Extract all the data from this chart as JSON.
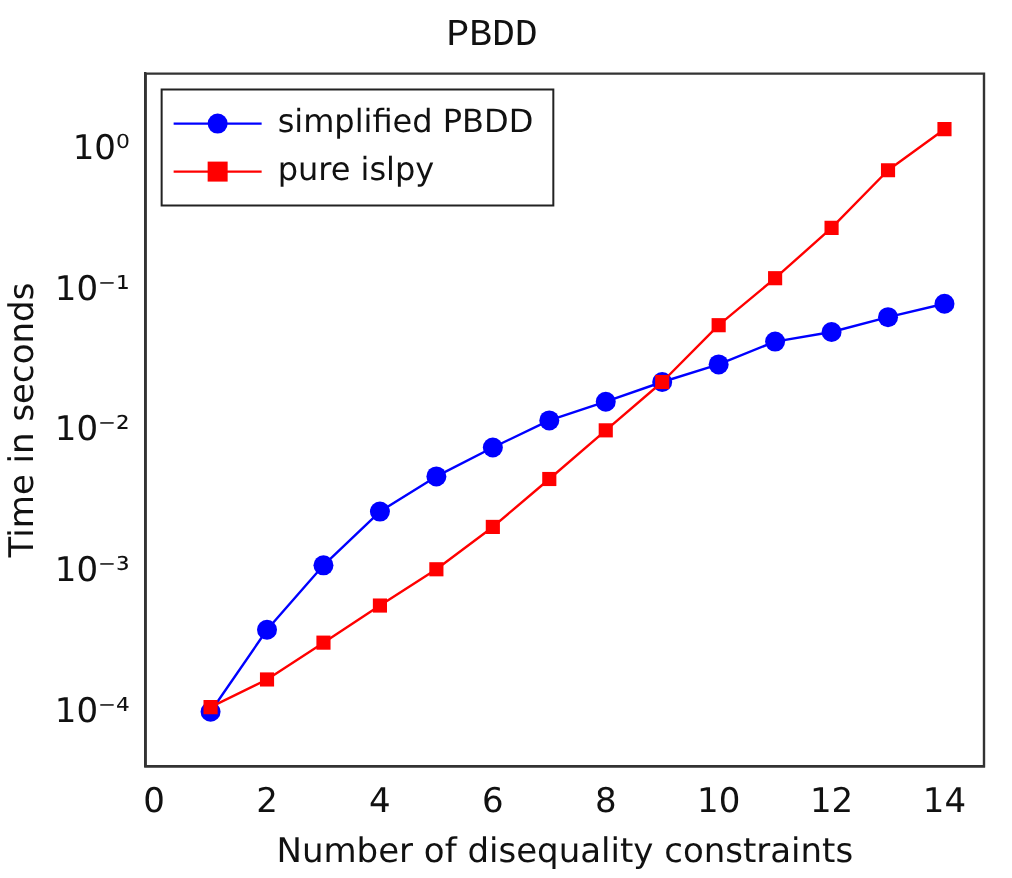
{
  "chart_data": {
    "type": "line",
    "title": "PBDD",
    "xlabel": "Number of disequality constraints",
    "ylabel": "Time in seconds",
    "x": [
      1,
      2,
      3,
      4,
      5,
      6,
      7,
      8,
      9,
      10,
      11,
      12,
      13,
      14
    ],
    "series": [
      {
        "name": "simplified PBDD",
        "color": "#0000ff",
        "marker": "circle",
        "values": [
          0.000102,
          0.00039,
          0.00112,
          0.0027,
          0.0048,
          0.0077,
          0.012,
          0.0163,
          0.0225,
          0.03,
          0.0436,
          0.051,
          0.065,
          0.081
        ]
      },
      {
        "name": "pure islpy",
        "color": "#ff0000",
        "marker": "square",
        "values": [
          0.00011,
          0.000173,
          0.000316,
          0.00058,
          0.00105,
          0.0021,
          0.0046,
          0.0102,
          0.0225,
          0.057,
          0.123,
          0.28,
          0.72,
          1.41
        ]
      }
    ],
    "log": "y",
    "xlim": [
      -0.15,
      14.7
    ],
    "xticks": [
      0,
      2,
      4,
      6,
      8,
      10,
      12,
      14
    ],
    "ylim": [
      4.17e-05,
      3.5
    ],
    "yticks": [
      {
        "value": 0.0001,
        "label": "10⁻⁴"
      },
      {
        "value": 0.001,
        "label": "10⁻³"
      },
      {
        "value": 0.01,
        "label": "10⁻²"
      },
      {
        "value": 0.1,
        "label": "10⁻¹"
      },
      {
        "value": 1,
        "label": "10⁰"
      }
    ],
    "grid": false,
    "legend": "top left",
    "line_style": "solid"
  }
}
